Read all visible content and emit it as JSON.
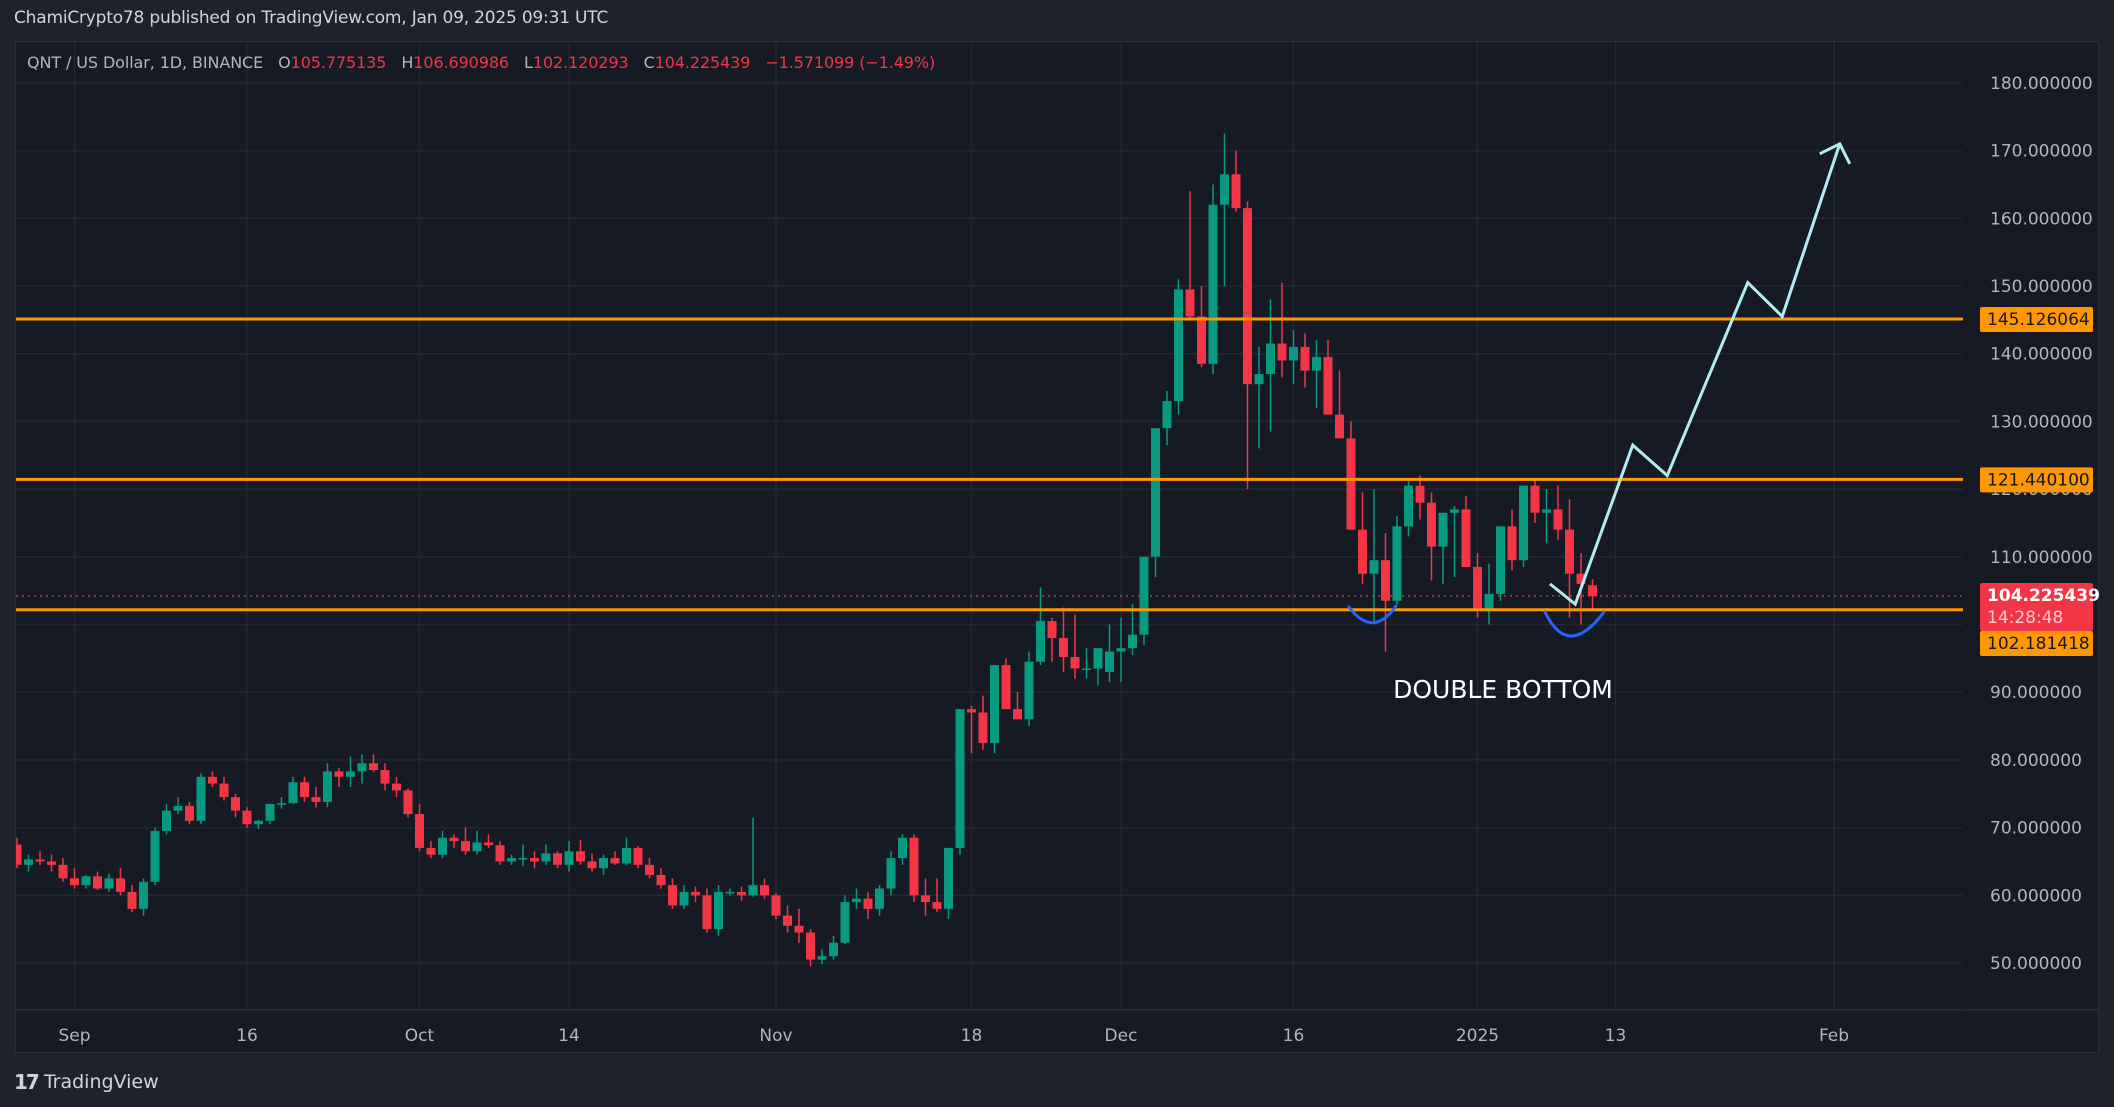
{
  "header": {
    "published": "ChamiCrypto78 published on TradingView.com, Jan 09, 2025 09:31 UTC"
  },
  "legend": {
    "symbol": "QNT / US Dollar, 1D, BINANCE",
    "open_label": "O",
    "open": "105.775135",
    "high_label": "H",
    "high": "106.690986",
    "low_label": "L",
    "low": "102.120293",
    "close_label": "C",
    "close": "104.225439",
    "change": "−1.571099 (−1.49%)"
  },
  "footer": {
    "brand": "TradingView",
    "logo": "17"
  },
  "colors": {
    "up": "#089981",
    "down": "#f23645",
    "level": "#ff9800",
    "projection": "#b2ebf2",
    "double_bottom_arc": "#2962ff",
    "grid": "#232733",
    "axis_text": "#b2b5be"
  },
  "chart_data": {
    "type": "candlestick",
    "title": "QNT / US Dollar, 1D, BINANCE",
    "xlabel": "",
    "ylabel": "",
    "ylim": [
      40.8,
      192.3
    ],
    "grid": true,
    "y_ticks": [
      "180.000000",
      "170.000000",
      "160.000000",
      "150.000000",
      "140.000000",
      "130.000000",
      "120.000000",
      "110.000000",
      "90.000000",
      "80.000000",
      "70.000000",
      "60.000000",
      "50.000000"
    ],
    "y_tick_values": [
      180,
      170,
      160,
      150,
      140,
      130,
      120,
      110,
      100,
      90,
      80,
      70,
      60,
      50
    ],
    "x_ticks": [
      {
        "label": "Sep",
        "day": 5
      },
      {
        "label": "16",
        "day": 20
      },
      {
        "label": "Oct",
        "day": 35
      },
      {
        "label": "14",
        "day": 48
      },
      {
        "label": "Nov",
        "day": 66
      },
      {
        "label": "18",
        "day": 83
      },
      {
        "label": "Dec",
        "day": 96
      },
      {
        "label": "16",
        "day": 111
      },
      {
        "label": "2025",
        "day": 127
      },
      {
        "label": "13",
        "day": 139
      },
      {
        "label": "Feb",
        "day": 158
      }
    ],
    "first_date": "2024-08-27",
    "last_date": "2025-01-09",
    "ohlc": [
      [
        67.5,
        68.5,
        64.0,
        64.5
      ],
      [
        64.5,
        66.0,
        63.5,
        65.3
      ],
      [
        65.3,
        66.5,
        64.5,
        65.0
      ],
      [
        65.0,
        66.0,
        63.5,
        64.5
      ],
      [
        64.5,
        65.5,
        62.0,
        62.5
      ],
      [
        62.5,
        64.0,
        61.0,
        61.5
      ],
      [
        61.5,
        63.0,
        61.0,
        62.8
      ],
      [
        62.8,
        63.5,
        60.8,
        61.0
      ],
      [
        61.0,
        63.2,
        60.5,
        62.5
      ],
      [
        62.5,
        64.0,
        60.0,
        60.5
      ],
      [
        60.5,
        61.5,
        57.5,
        58.0
      ],
      [
        58.0,
        62.5,
        57.0,
        62.0
      ],
      [
        62.0,
        70.0,
        61.5,
        69.5
      ],
      [
        69.5,
        73.5,
        69.0,
        72.5
      ],
      [
        72.5,
        74.5,
        72.0,
        73.2
      ],
      [
        73.2,
        73.8,
        70.5,
        71.0
      ],
      [
        71.0,
        78.0,
        70.5,
        77.5
      ],
      [
        77.5,
        78.3,
        76.0,
        76.5
      ],
      [
        76.5,
        77.5,
        74.0,
        74.5
      ],
      [
        74.5,
        75.0,
        71.5,
        72.5
      ],
      [
        72.5,
        73.0,
        70.0,
        70.5
      ],
      [
        70.5,
        71.2,
        69.8,
        71.0
      ],
      [
        71.0,
        73.5,
        70.5,
        73.5
      ],
      [
        73.5,
        74.5,
        72.8,
        73.6
      ],
      [
        73.6,
        77.5,
        73.5,
        76.7
      ],
      [
        76.7,
        77.5,
        73.8,
        74.5
      ],
      [
        74.5,
        76.0,
        73.0,
        73.8
      ],
      [
        73.8,
        79.5,
        73.0,
        78.3
      ],
      [
        78.3,
        78.8,
        76.0,
        77.5
      ],
      [
        77.5,
        80.5,
        76.0,
        78.3
      ],
      [
        78.3,
        80.8,
        76.5,
        79.5
      ],
      [
        79.5,
        80.8,
        78.2,
        78.5
      ],
      [
        78.5,
        79.5,
        75.5,
        76.5
      ],
      [
        76.5,
        77.5,
        74.5,
        75.5
      ],
      [
        75.5,
        75.8,
        71.5,
        72.0
      ],
      [
        72.0,
        73.5,
        66.5,
        67.0
      ],
      [
        67.0,
        68.0,
        65.5,
        66.0
      ],
      [
        66.0,
        69.5,
        65.5,
        68.5
      ],
      [
        68.5,
        69.0,
        67.0,
        68.0
      ],
      [
        68.0,
        70.0,
        66.0,
        66.5
      ],
      [
        66.5,
        69.5,
        66.0,
        67.8
      ],
      [
        67.8,
        69.0,
        67.0,
        67.4
      ],
      [
        67.4,
        68.0,
        64.5,
        65.0
      ],
      [
        65.0,
        66.0,
        64.5,
        65.5
      ],
      [
        65.5,
        67.5,
        64.3,
        65.5
      ],
      [
        65.5,
        66.5,
        64.0,
        65.0
      ],
      [
        65.0,
        67.5,
        64.5,
        66.2
      ],
      [
        66.2,
        66.5,
        64.0,
        64.5
      ],
      [
        64.5,
        68.0,
        63.5,
        66.5
      ],
      [
        66.5,
        68.2,
        64.5,
        65.0
      ],
      [
        65.0,
        66.2,
        63.5,
        64.0
      ],
      [
        64.0,
        66.0,
        63.0,
        65.5
      ],
      [
        65.5,
        66.5,
        64.5,
        64.7
      ],
      [
        64.7,
        68.5,
        64.5,
        67.0
      ],
      [
        67.0,
        67.3,
        64.0,
        64.5
      ],
      [
        64.5,
        65.5,
        62.5,
        63.0
      ],
      [
        63.0,
        64.0,
        61.0,
        61.5
      ],
      [
        61.5,
        62.5,
        58.0,
        58.5
      ],
      [
        58.5,
        61.5,
        58.0,
        60.5
      ],
      [
        60.5,
        61.3,
        59.0,
        60.0
      ],
      [
        60.0,
        61.0,
        54.5,
        55.0
      ],
      [
        55.0,
        61.5,
        54.0,
        60.5
      ],
      [
        60.5,
        61.0,
        60.0,
        60.5
      ],
      [
        60.5,
        61.3,
        59.2,
        60.0
      ],
      [
        60.0,
        71.5,
        59.8,
        61.5
      ],
      [
        61.5,
        62.5,
        59.5,
        60.0
      ],
      [
        60.0,
        60.3,
        56.5,
        57.0
      ],
      [
        57.0,
        58.5,
        54.5,
        55.5
      ],
      [
        55.5,
        58.0,
        53.0,
        54.5
      ],
      [
        54.5,
        55.0,
        49.5,
        50.5
      ],
      [
        50.5,
        52.0,
        49.8,
        51.0
      ],
      [
        51.0,
        54.0,
        50.5,
        53.0
      ],
      [
        53.0,
        60.0,
        52.8,
        59.0
      ],
      [
        59.0,
        61.0,
        58.0,
        59.5
      ],
      [
        59.5,
        60.5,
        56.5,
        58.0
      ],
      [
        58.0,
        61.5,
        57.0,
        61.0
      ],
      [
        61.0,
        66.5,
        60.0,
        65.5
      ],
      [
        65.5,
        69.0,
        64.5,
        68.5
      ],
      [
        68.5,
        69.0,
        59.0,
        60.0
      ],
      [
        60.0,
        62.5,
        57.0,
        59.0
      ],
      [
        59.0,
        62.5,
        57.5,
        58.0
      ],
      [
        58.0,
        67.0,
        56.5,
        67.0
      ],
      [
        67.0,
        78.5,
        66.0,
        87.5
      ],
      [
        87.5,
        88.0,
        81.0,
        87.0
      ],
      [
        87.0,
        89.5,
        81.5,
        82.5
      ],
      [
        82.5,
        94.0,
        81.0,
        94.0
      ],
      [
        94.0,
        95.0,
        88.0,
        87.5
      ],
      [
        87.5,
        90.0,
        86.0,
        86.0
      ],
      [
        86.0,
        96.0,
        85.0,
        94.5
      ],
      [
        94.5,
        105.5,
        94.0,
        100.5
      ],
      [
        100.5,
        101.0,
        94.5,
        98.0
      ],
      [
        98.0,
        102.5,
        93.0,
        95.2
      ],
      [
        95.2,
        101.5,
        92.0,
        93.5
      ],
      [
        93.5,
        96.5,
        92.0,
        93.5
      ],
      [
        93.5,
        95.0,
        91.0,
        96.5
      ],
      [
        93.0,
        100.0,
        91.5,
        96.0
      ],
      [
        96.0,
        101.0,
        91.5,
        96.5
      ],
      [
        96.5,
        103.0,
        95.5,
        98.5
      ],
      [
        98.5,
        109.0,
        97.0,
        110.0
      ],
      [
        110.0,
        128.5,
        107.0,
        129.0
      ],
      [
        129.0,
        134.5,
        126.5,
        133.0
      ],
      [
        133.0,
        151.0,
        131.0,
        149.5
      ],
      [
        149.5,
        164.0,
        145.0,
        145.5
      ],
      [
        145.5,
        150.0,
        138.0,
        138.5
      ],
      [
        138.5,
        165.0,
        137.0,
        162.0
      ],
      [
        162.0,
        172.5,
        150.0,
        166.5
      ],
      [
        166.5,
        170.0,
        161.0,
        161.5
      ],
      [
        161.5,
        162.5,
        120.0,
        135.5
      ],
      [
        135.5,
        141.0,
        126.0,
        137.0
      ],
      [
        137.0,
        148.0,
        128.5,
        141.5
      ],
      [
        141.5,
        150.5,
        136.5,
        139.0
      ],
      [
        139.0,
        143.5,
        135.5,
        141.0
      ],
      [
        141.0,
        143.0,
        135.0,
        137.5
      ],
      [
        137.5,
        142.0,
        132.0,
        139.5
      ],
      [
        139.5,
        142.0,
        131.0,
        131.0
      ],
      [
        131.0,
        137.5,
        128.5,
        127.5
      ],
      [
        127.5,
        130.0,
        116.5,
        114.0
      ],
      [
        114.0,
        119.5,
        106.0,
        107.5
      ],
      [
        107.5,
        120.0,
        100.0,
        109.5
      ],
      [
        109.5,
        113.5,
        96.0,
        103.5
      ],
      [
        103.5,
        116.0,
        103.0,
        114.5
      ],
      [
        114.5,
        121.5,
        113.0,
        120.5
      ],
      [
        120.5,
        122.0,
        115.5,
        118.0
      ],
      [
        118.0,
        119.5,
        106.5,
        111.5
      ],
      [
        111.5,
        113.5,
        106.0,
        116.5
      ],
      [
        116.5,
        117.5,
        107.0,
        117.0
      ],
      [
        117.0,
        119.0,
        108.5,
        108.5
      ],
      [
        108.5,
        110.5,
        101.0,
        102.0
      ],
      [
        102.0,
        109.0,
        100.0,
        104.5
      ],
      [
        104.5,
        111.0,
        103.5,
        114.5
      ],
      [
        114.5,
        117.0,
        108.0,
        109.5
      ],
      [
        109.5,
        120.5,
        108.5,
        120.5
      ],
      [
        120.5,
        121.5,
        115.0,
        116.5
      ],
      [
        116.5,
        120.0,
        112.0,
        117.0
      ],
      [
        117.0,
        120.5,
        112.5,
        114.0
      ],
      [
        114.0,
        118.5,
        101.0,
        107.5
      ],
      [
        107.5,
        110.5,
        100.0,
        106.0
      ],
      [
        105.8,
        106.7,
        102.1,
        104.2
      ]
    ],
    "horizontal_levels": [
      {
        "price": 145.126064,
        "label": "145.126064"
      },
      {
        "price": 121.4401,
        "label": "121.440100"
      },
      {
        "price": 102.181418,
        "label": "102.181418"
      }
    ],
    "last_price": {
      "value": "104.225439",
      "countdown": "14:28:48",
      "price": 104.225439
    },
    "annotations": [
      {
        "type": "text",
        "text": "DOUBLE BOTTOM"
      },
      {
        "type": "arc",
        "label": "first bottom",
        "day_from": 119,
        "day_to": 124
      },
      {
        "type": "arc",
        "label": "second bottom",
        "day_from": 134,
        "day_to": 140
      },
      {
        "type": "projection",
        "points": [
          [
            133.3,
            106.0
          ],
          [
            135.5,
            103.0
          ],
          [
            140.5,
            126.5
          ],
          [
            143.5,
            122.0
          ],
          [
            150.5,
            150.5
          ],
          [
            153.5,
            145.5
          ],
          [
            158.5,
            171.0
          ]
        ]
      }
    ]
  }
}
